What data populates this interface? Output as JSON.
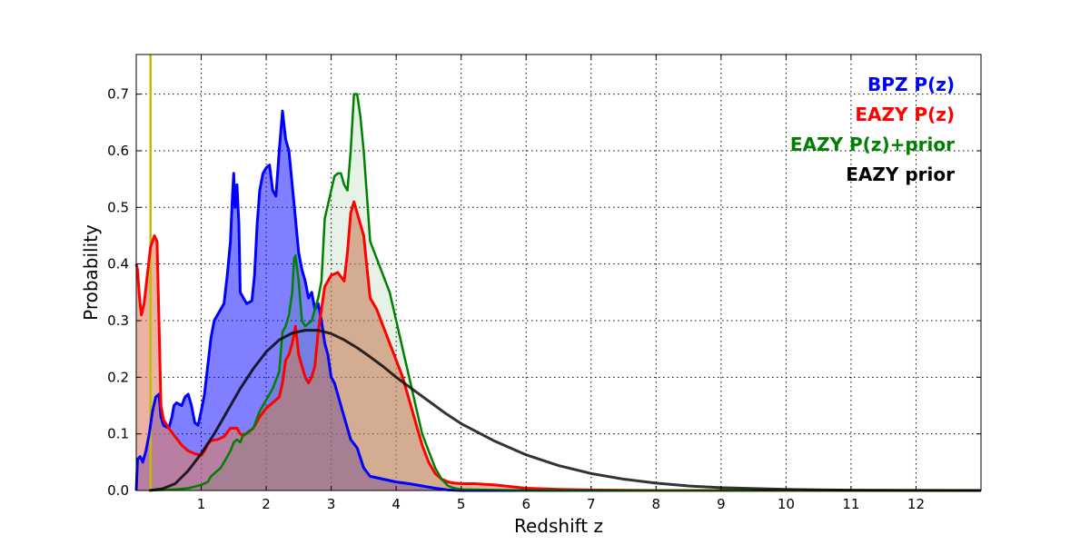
{
  "chart_data": {
    "type": "area",
    "xlabel": "Redshift z",
    "ylabel": "Probability",
    "xlim": [
      0,
      13
    ],
    "ylim": [
      0,
      0.77
    ],
    "grid": true,
    "legend_placement": "top-right",
    "x_ticks": [
      1,
      2,
      3,
      4,
      5,
      6,
      7,
      8,
      9,
      10,
      11,
      12
    ],
    "y_ticks": [
      0.0,
      0.1,
      0.2,
      0.3,
      0.4,
      0.5,
      0.6,
      0.7
    ],
    "vertical_line": {
      "x": 0.22,
      "color": "#bfbf00"
    },
    "series": [
      {
        "name": "BPZ P(z)",
        "color": "#0000ff",
        "fill": "#0000ff",
        "fill_opacity": 0.5,
        "line_width": 3,
        "points": [
          [
            0,
            0.0
          ],
          [
            0.02,
            0.055
          ],
          [
            0.06,
            0.06
          ],
          [
            0.1,
            0.05
          ],
          [
            0.15,
            0.07
          ],
          [
            0.2,
            0.1
          ],
          [
            0.25,
            0.14
          ],
          [
            0.3,
            0.165
          ],
          [
            0.35,
            0.17
          ],
          [
            0.38,
            0.13
          ],
          [
            0.42,
            0.115
          ],
          [
            0.5,
            0.11
          ],
          [
            0.55,
            0.13
          ],
          [
            0.58,
            0.15
          ],
          [
            0.62,
            0.155
          ],
          [
            0.7,
            0.15
          ],
          [
            0.75,
            0.165
          ],
          [
            0.8,
            0.17
          ],
          [
            0.85,
            0.15
          ],
          [
            0.9,
            0.12
          ],
          [
            0.95,
            0.115
          ],
          [
            1.0,
            0.14
          ],
          [
            1.05,
            0.17
          ],
          [
            1.1,
            0.22
          ],
          [
            1.15,
            0.27
          ],
          [
            1.2,
            0.3
          ],
          [
            1.3,
            0.32
          ],
          [
            1.35,
            0.33
          ],
          [
            1.4,
            0.38
          ],
          [
            1.45,
            0.44
          ],
          [
            1.48,
            0.52
          ],
          [
            1.5,
            0.56
          ],
          [
            1.52,
            0.5
          ],
          [
            1.55,
            0.54
          ],
          [
            1.58,
            0.47
          ],
          [
            1.6,
            0.35
          ],
          [
            1.65,
            0.34
          ],
          [
            1.7,
            0.33
          ],
          [
            1.78,
            0.335
          ],
          [
            1.82,
            0.38
          ],
          [
            1.86,
            0.47
          ],
          [
            1.9,
            0.53
          ],
          [
            1.95,
            0.56
          ],
          [
            2.0,
            0.57
          ],
          [
            2.05,
            0.575
          ],
          [
            2.1,
            0.53
          ],
          [
            2.15,
            0.52
          ],
          [
            2.2,
            0.6
          ],
          [
            2.25,
            0.67
          ],
          [
            2.3,
            0.62
          ],
          [
            2.35,
            0.6
          ],
          [
            2.4,
            0.54
          ],
          [
            2.45,
            0.48
          ],
          [
            2.5,
            0.42
          ],
          [
            2.55,
            0.39
          ],
          [
            2.6,
            0.37
          ],
          [
            2.65,
            0.34
          ],
          [
            2.7,
            0.35
          ],
          [
            2.75,
            0.32
          ],
          [
            2.8,
            0.33
          ],
          [
            2.85,
            0.3
          ],
          [
            2.9,
            0.26
          ],
          [
            2.95,
            0.24
          ],
          [
            3.0,
            0.2
          ],
          [
            3.05,
            0.19
          ],
          [
            3.1,
            0.17
          ],
          [
            3.15,
            0.15
          ],
          [
            3.2,
            0.13
          ],
          [
            3.3,
            0.09
          ],
          [
            3.4,
            0.075
          ],
          [
            3.5,
            0.04
          ],
          [
            3.6,
            0.025
          ],
          [
            3.8,
            0.02
          ],
          [
            4.0,
            0.015
          ],
          [
            4.2,
            0.012
          ],
          [
            4.4,
            0.008
          ],
          [
            4.6,
            0.004
          ],
          [
            4.8,
            0.001
          ],
          [
            5.0,
            0.0
          ],
          [
            13,
            0.0
          ]
        ]
      },
      {
        "name": "EAZY P(z)",
        "color": "#ff0000",
        "fill": "#e07f65",
        "fill_opacity": 0.6,
        "line_width": 3,
        "points": [
          [
            0,
            0.4
          ],
          [
            0.02,
            0.39
          ],
          [
            0.05,
            0.34
          ],
          [
            0.08,
            0.31
          ],
          [
            0.12,
            0.33
          ],
          [
            0.18,
            0.39
          ],
          [
            0.22,
            0.43
          ],
          [
            0.28,
            0.45
          ],
          [
            0.32,
            0.44
          ],
          [
            0.35,
            0.3
          ],
          [
            0.38,
            0.15
          ],
          [
            0.42,
            0.125
          ],
          [
            0.5,
            0.11
          ],
          [
            0.6,
            0.095
          ],
          [
            0.7,
            0.08
          ],
          [
            0.8,
            0.07
          ],
          [
            0.9,
            0.065
          ],
          [
            1.0,
            0.062
          ],
          [
            1.05,
            0.07
          ],
          [
            1.1,
            0.082
          ],
          [
            1.15,
            0.088
          ],
          [
            1.25,
            0.09
          ],
          [
            1.35,
            0.095
          ],
          [
            1.45,
            0.11
          ],
          [
            1.55,
            0.11
          ],
          [
            1.6,
            0.1
          ],
          [
            1.65,
            0.097
          ],
          [
            1.8,
            0.11
          ],
          [
            1.9,
            0.13
          ],
          [
            2.0,
            0.145
          ],
          [
            2.1,
            0.155
          ],
          [
            2.15,
            0.16
          ],
          [
            2.2,
            0.165
          ],
          [
            2.25,
            0.19
          ],
          [
            2.3,
            0.23
          ],
          [
            2.35,
            0.24
          ],
          [
            2.4,
            0.26
          ],
          [
            2.45,
            0.29
          ],
          [
            2.5,
            0.24
          ],
          [
            2.55,
            0.22
          ],
          [
            2.6,
            0.2
          ],
          [
            2.65,
            0.19
          ],
          [
            2.7,
            0.2
          ],
          [
            2.75,
            0.22
          ],
          [
            2.8,
            0.28
          ],
          [
            2.85,
            0.32
          ],
          [
            2.9,
            0.36
          ],
          [
            3.0,
            0.38
          ],
          [
            3.1,
            0.385
          ],
          [
            3.2,
            0.37
          ],
          [
            3.25,
            0.42
          ],
          [
            3.3,
            0.49
          ],
          [
            3.35,
            0.51
          ],
          [
            3.4,
            0.49
          ],
          [
            3.5,
            0.45
          ],
          [
            3.6,
            0.34
          ],
          [
            3.7,
            0.32
          ],
          [
            3.8,
            0.29
          ],
          [
            3.9,
            0.26
          ],
          [
            4.0,
            0.23
          ],
          [
            4.1,
            0.2
          ],
          [
            4.2,
            0.16
          ],
          [
            4.3,
            0.12
          ],
          [
            4.4,
            0.08
          ],
          [
            4.5,
            0.05
          ],
          [
            4.6,
            0.03
          ],
          [
            4.7,
            0.02
          ],
          [
            4.8,
            0.015
          ],
          [
            4.9,
            0.013
          ],
          [
            5.0,
            0.012
          ],
          [
            5.2,
            0.012
          ],
          [
            5.5,
            0.01
          ],
          [
            6.0,
            0.004
          ],
          [
            6.5,
            0.002
          ],
          [
            7.0,
            0.001
          ],
          [
            8.0,
            0.0
          ],
          [
            13,
            0.0
          ]
        ]
      },
      {
        "name": "EAZY P(z)+prior",
        "color": "#008000",
        "fill": "#008000",
        "fill_opacity": 0.1,
        "line_width": 2.5,
        "points": [
          [
            0.2,
            0.0
          ],
          [
            0.4,
            0.001
          ],
          [
            0.6,
            0.002
          ],
          [
            0.8,
            0.004
          ],
          [
            1.0,
            0.01
          ],
          [
            1.1,
            0.015
          ],
          [
            1.15,
            0.025
          ],
          [
            1.2,
            0.03
          ],
          [
            1.3,
            0.04
          ],
          [
            1.4,
            0.06
          ],
          [
            1.45,
            0.07
          ],
          [
            1.5,
            0.085
          ],
          [
            1.55,
            0.09
          ],
          [
            1.6,
            0.085
          ],
          [
            1.65,
            0.1
          ],
          [
            1.7,
            0.1
          ],
          [
            1.8,
            0.11
          ],
          [
            1.9,
            0.14
          ],
          [
            2.0,
            0.16
          ],
          [
            2.1,
            0.18
          ],
          [
            2.2,
            0.21
          ],
          [
            2.25,
            0.28
          ],
          [
            2.3,
            0.29
          ],
          [
            2.35,
            0.31
          ],
          [
            2.4,
            0.35
          ],
          [
            2.43,
            0.41
          ],
          [
            2.45,
            0.415
          ],
          [
            2.5,
            0.37
          ],
          [
            2.55,
            0.3
          ],
          [
            2.6,
            0.29
          ],
          [
            2.7,
            0.3
          ],
          [
            2.75,
            0.32
          ],
          [
            2.8,
            0.34
          ],
          [
            2.85,
            0.37
          ],
          [
            2.9,
            0.48
          ],
          [
            3.0,
            0.53
          ],
          [
            3.05,
            0.555
          ],
          [
            3.1,
            0.56
          ],
          [
            3.15,
            0.56
          ],
          [
            3.2,
            0.54
          ],
          [
            3.25,
            0.53
          ],
          [
            3.3,
            0.6
          ],
          [
            3.35,
            0.7
          ],
          [
            3.4,
            0.7
          ],
          [
            3.45,
            0.66
          ],
          [
            3.5,
            0.6
          ],
          [
            3.55,
            0.52
          ],
          [
            3.6,
            0.44
          ],
          [
            3.7,
            0.41
          ],
          [
            3.8,
            0.38
          ],
          [
            3.9,
            0.35
          ],
          [
            4.0,
            0.3
          ],
          [
            4.1,
            0.25
          ],
          [
            4.2,
            0.2
          ],
          [
            4.3,
            0.15
          ],
          [
            4.4,
            0.1
          ],
          [
            4.5,
            0.07
          ],
          [
            4.6,
            0.04
          ],
          [
            4.7,
            0.02
          ],
          [
            4.8,
            0.008
          ],
          [
            4.9,
            0.004
          ],
          [
            5.0,
            0.002
          ],
          [
            5.5,
            0.001
          ],
          [
            6.0,
            0.0
          ],
          [
            13,
            0.0
          ]
        ]
      },
      {
        "name": "EAZY prior",
        "color": "#000000",
        "fill": "none",
        "line_width": 3,
        "opacity": 0.8,
        "points": [
          [
            0.2,
            0.0
          ],
          [
            0.4,
            0.003
          ],
          [
            0.6,
            0.012
          ],
          [
            0.8,
            0.035
          ],
          [
            1.0,
            0.065
          ],
          [
            1.2,
            0.1
          ],
          [
            1.4,
            0.14
          ],
          [
            1.6,
            0.18
          ],
          [
            1.8,
            0.215
          ],
          [
            2.0,
            0.245
          ],
          [
            2.2,
            0.266
          ],
          [
            2.4,
            0.278
          ],
          [
            2.6,
            0.283
          ],
          [
            2.8,
            0.283
          ],
          [
            3.0,
            0.277
          ],
          [
            3.2,
            0.266
          ],
          [
            3.4,
            0.252
          ],
          [
            3.6,
            0.236
          ],
          [
            3.8,
            0.219
          ],
          [
            4.0,
            0.2
          ],
          [
            4.25,
            0.179
          ],
          [
            4.5,
            0.158
          ],
          [
            4.75,
            0.137
          ],
          [
            5.0,
            0.118
          ],
          [
            5.5,
            0.088
          ],
          [
            6.0,
            0.063
          ],
          [
            6.5,
            0.044
          ],
          [
            7.0,
            0.03
          ],
          [
            7.5,
            0.02
          ],
          [
            8.0,
            0.013
          ],
          [
            8.5,
            0.008
          ],
          [
            9.0,
            0.005
          ],
          [
            10.0,
            0.002
          ],
          [
            11.0,
            0.0007
          ],
          [
            12.0,
            0.0002
          ],
          [
            13.0,
            0.0
          ]
        ]
      }
    ]
  }
}
